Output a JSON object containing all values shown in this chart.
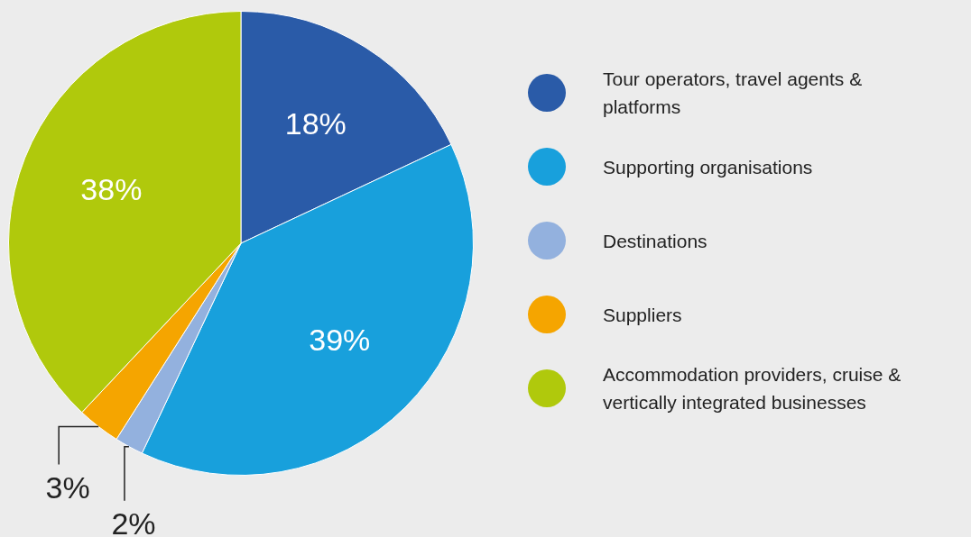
{
  "chart_data": {
    "type": "pie",
    "categories": [
      "Tour operators, travel agents & platforms",
      "Supporting organisations",
      "Destinations",
      "Suppliers",
      "Accommodation providers, cruise & vertically integrated businesses"
    ],
    "values": [
      18,
      39,
      2,
      3,
      38
    ],
    "colors": [
      "#2a5ba8",
      "#18a0dc",
      "#93b1de",
      "#f5a500",
      "#b0c90c"
    ],
    "value_labels": [
      "18%",
      "39%",
      "2%",
      "3%",
      "38%"
    ],
    "legend": "right"
  }
}
